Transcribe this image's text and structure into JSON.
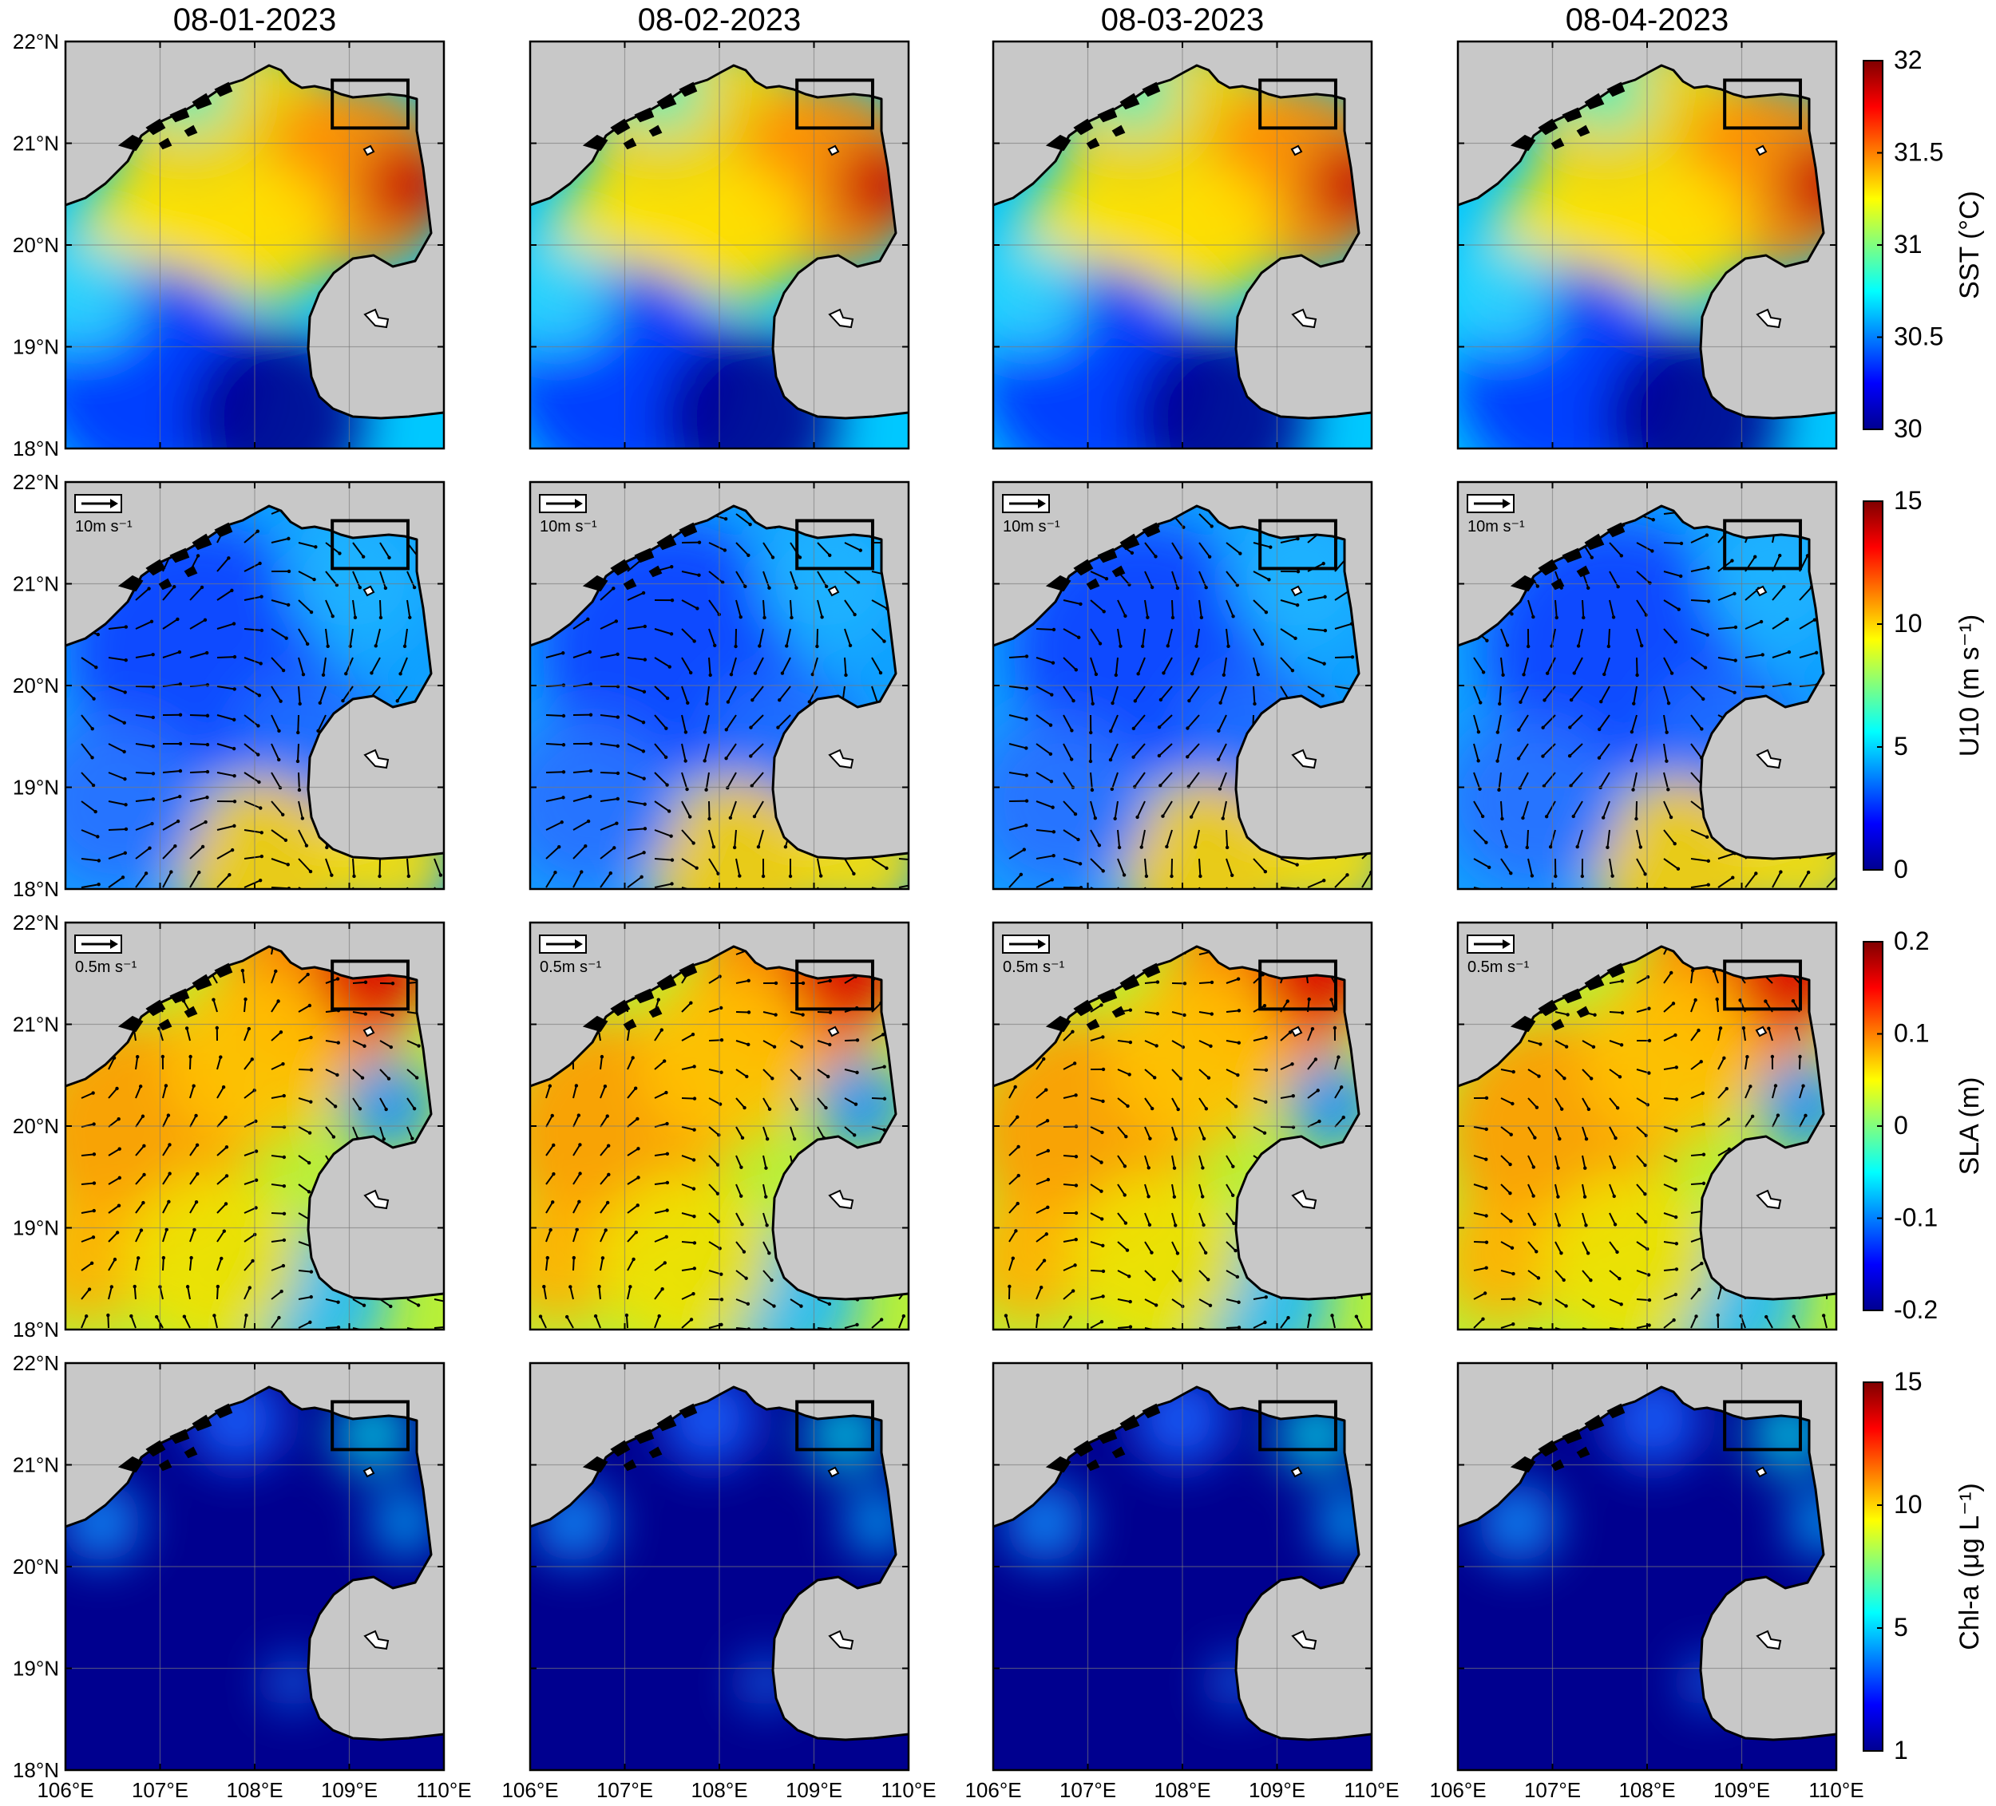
{
  "dates": [
    "08-01-2023",
    "08-02-2023",
    "08-03-2023",
    "08-04-2023"
  ],
  "lat_labels": [
    "22°N",
    "21°N",
    "20°N",
    "19°N",
    "18°N"
  ],
  "lon_labels": [
    "106°E",
    "107°E",
    "108°E",
    "109°E",
    "110°E"
  ],
  "rows": [
    {
      "variable": "SST",
      "colorbar": {
        "title": "SST (°C)",
        "ticks": [
          "32",
          "31.5",
          "31",
          "30.5",
          "30"
        ]
      },
      "scale_label": ""
    },
    {
      "variable": "U10",
      "colorbar": {
        "title": "U10 (m s⁻¹)",
        "ticks": [
          "15",
          "10",
          "5",
          "0"
        ]
      },
      "scale_label": "10m s⁻¹"
    },
    {
      "variable": "SLA",
      "colorbar": {
        "title": "SLA (m)",
        "ticks": [
          "0.2",
          "0.1",
          "0",
          "-0.1",
          "-0.2"
        ]
      },
      "scale_label": "0.5m s⁻¹"
    },
    {
      "variable": "Chl-a",
      "colorbar": {
        "title": "Chl-a (μg L⁻¹)",
        "ticks": [
          "15",
          "10",
          "5",
          "1"
        ]
      },
      "scale_label": ""
    }
  ],
  "colors": {
    "land": "#c8c8c8",
    "jet_low": "#00008f",
    "jet_high": "#800000"
  },
  "study_box": {
    "lon": [
      108.82,
      109.62
    ],
    "lat": [
      21.15,
      21.62
    ]
  }
}
